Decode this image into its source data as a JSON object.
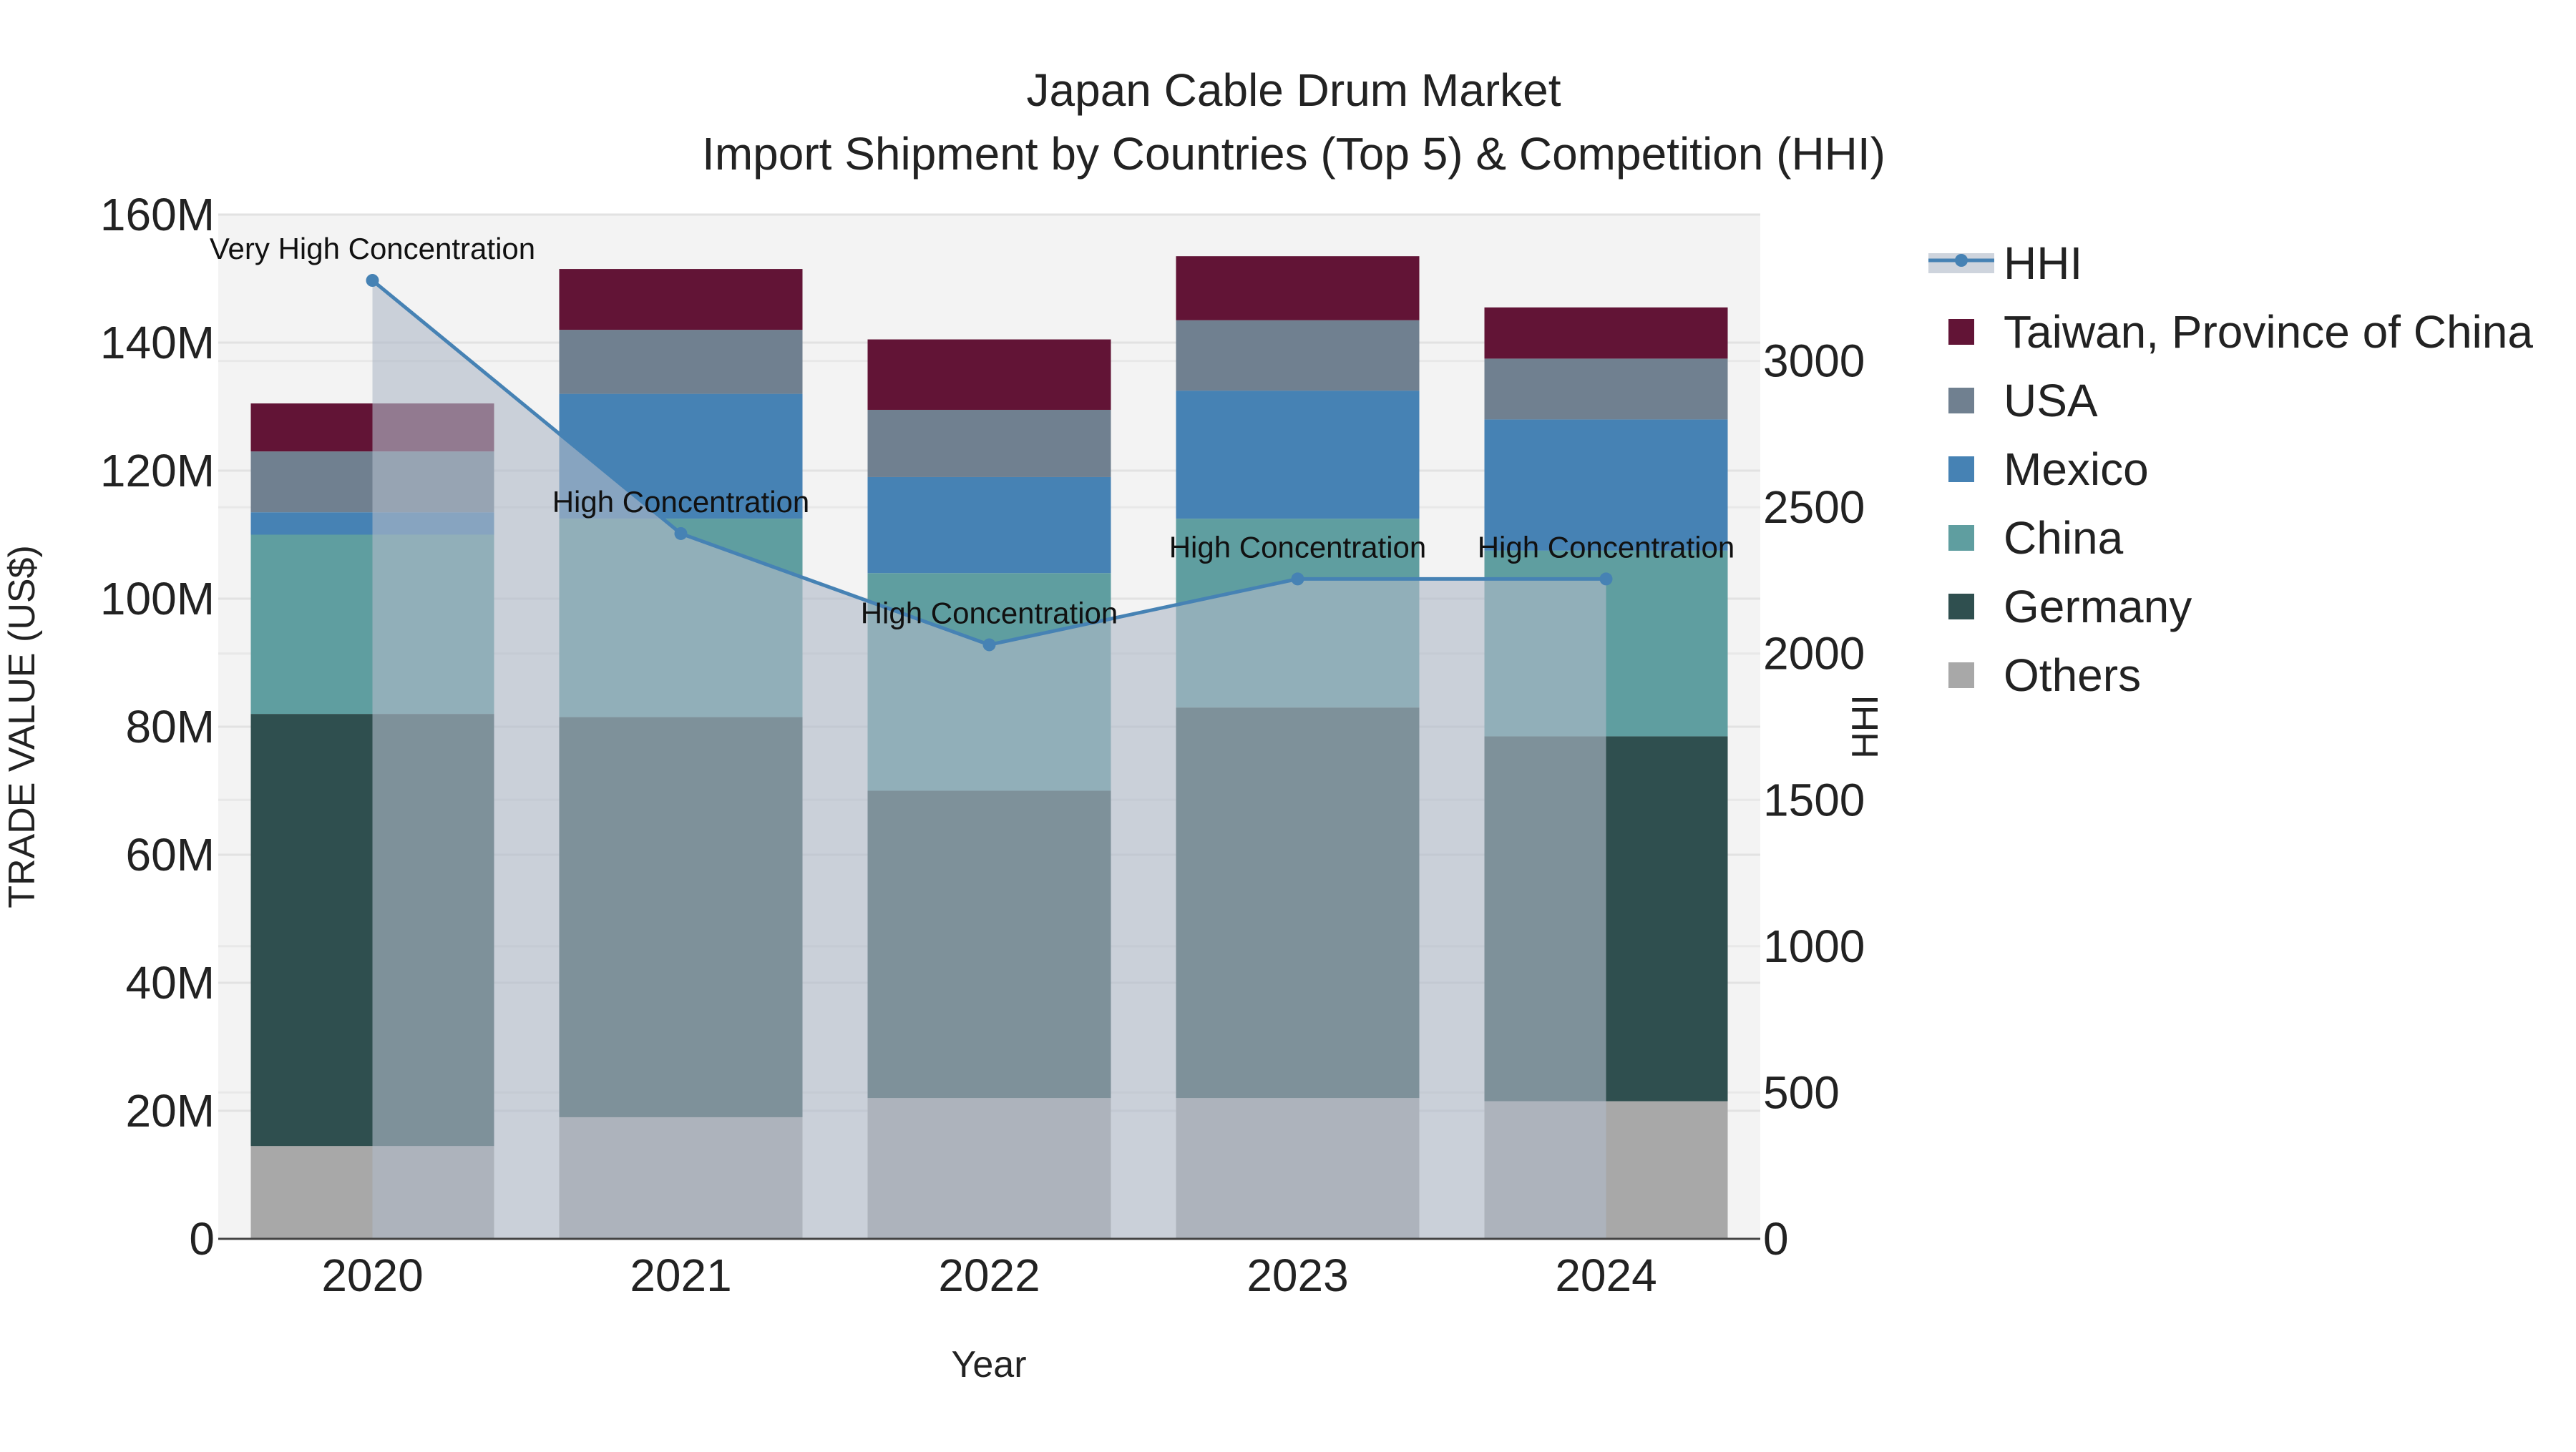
{
  "chart_data": {
    "type": "bar",
    "title": "Japan Cable Drum Market",
    "subtitle": "Import Shipment by Countries (Top 5) & Competition (HHI)",
    "xlabel": "Year",
    "ylabel": "TRADE VALUE (US$)",
    "y2label": "HHI",
    "categories": [
      "2020",
      "2021",
      "2022",
      "2023",
      "2024"
    ],
    "ylim": [
      0,
      160000000
    ],
    "y2lim": [
      0,
      3500
    ],
    "yticks": [
      {
        "value": 0,
        "label": "0"
      },
      {
        "value": 20000000,
        "label": "20M"
      },
      {
        "value": 40000000,
        "label": "40M"
      },
      {
        "value": 60000000,
        "label": "60M"
      },
      {
        "value": 80000000,
        "label": "80M"
      },
      {
        "value": 100000000,
        "label": "100M"
      },
      {
        "value": 120000000,
        "label": "120M"
      },
      {
        "value": 140000000,
        "label": "140M"
      },
      {
        "value": 160000000,
        "label": "160M"
      }
    ],
    "y2ticks": [
      {
        "value": 0,
        "label": "0"
      },
      {
        "value": 500,
        "label": "500"
      },
      {
        "value": 1000,
        "label": "1000"
      },
      {
        "value": 1500,
        "label": "1500"
      },
      {
        "value": 2000,
        "label": "2000"
      },
      {
        "value": 2500,
        "label": "2500"
      },
      {
        "value": 3000,
        "label": "3000"
      }
    ],
    "series": [
      {
        "name": "Others",
        "color": "#a8a8a8",
        "values": [
          14500000,
          19000000,
          22000000,
          22000000,
          21500000
        ]
      },
      {
        "name": "Germany",
        "color": "#2f4f4f",
        "values": [
          67500000,
          62500000,
          48000000,
          61000000,
          57000000
        ]
      },
      {
        "name": "China",
        "color": "#5f9ea0",
        "values": [
          28000000,
          31000000,
          34000000,
          29500000,
          29000000
        ]
      },
      {
        "name": "Mexico",
        "color": "#4682b4",
        "values": [
          3500000,
          19500000,
          15000000,
          20000000,
          20500000
        ]
      },
      {
        "name": "USA",
        "color": "#708090",
        "values": [
          9500000,
          10000000,
          10500000,
          11000000,
          9500000
        ]
      },
      {
        "name": "Taiwan, Province of China",
        "color": "#621436",
        "values": [
          7500000,
          9500000,
          11000000,
          10000000,
          8000000
        ]
      }
    ],
    "hhi": {
      "name": "HHI",
      "color": "#4682b4",
      "values": [
        3275,
        2410,
        2030,
        2255,
        2255
      ],
      "labels": [
        "Very High Concentration",
        "High Concentration",
        "High Concentration",
        "High Concentration",
        "High Concentration"
      ]
    },
    "legend": {
      "position": "right",
      "items": [
        "HHI",
        "Taiwan, Province of China",
        "USA",
        "Mexico",
        "China",
        "Germany",
        "Others"
      ]
    }
  }
}
